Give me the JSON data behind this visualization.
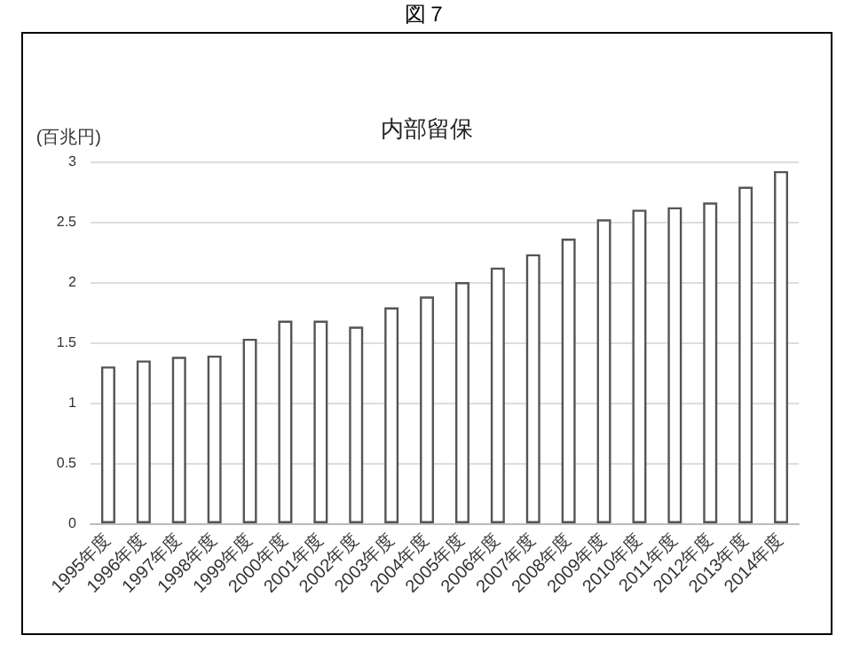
{
  "chart_data": {
    "type": "bar",
    "title": "内部留保",
    "ylabel": "(百兆円)",
    "annotations": [
      "図７"
    ],
    "categories": [
      "1995年度",
      "1996年度",
      "1997年度",
      "1998年度",
      "1999年度",
      "2000年度",
      "2001年度",
      "2002年度",
      "2003年度",
      "2004年度",
      "2005年度",
      "2006年度",
      "2007年度",
      "2008年度",
      "2009年度",
      "2010年度",
      "2011年度",
      "2012年度",
      "2013年度",
      "2014年度"
    ],
    "values": [
      1.3,
      1.35,
      1.38,
      1.39,
      1.53,
      1.68,
      1.68,
      1.63,
      1.79,
      1.88,
      2.0,
      2.12,
      2.23,
      2.36,
      2.52,
      2.6,
      2.62,
      2.66,
      2.79,
      2.92
    ],
    "color": "#ffffff",
    "ylim": [
      0,
      3
    ],
    "yticks": [
      0,
      0.5,
      1,
      1.5,
      2,
      2.5,
      3
    ],
    "grid": "y"
  }
}
